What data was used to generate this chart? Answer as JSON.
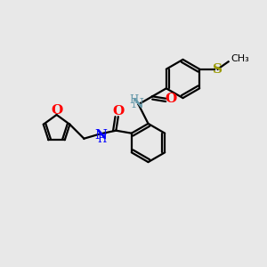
{
  "bg_color": "#e8e8e8",
  "bond_color": "#000000",
  "N_color": "#0000ff",
  "NH_color": "#6699aa",
  "O_color": "#ff0000",
  "S_color": "#999900",
  "lw": 1.6,
  "r_hex": 0.72,
  "r_fur": 0.52,
  "xlim": [
    0,
    10
  ],
  "ylim": [
    0,
    10
  ]
}
